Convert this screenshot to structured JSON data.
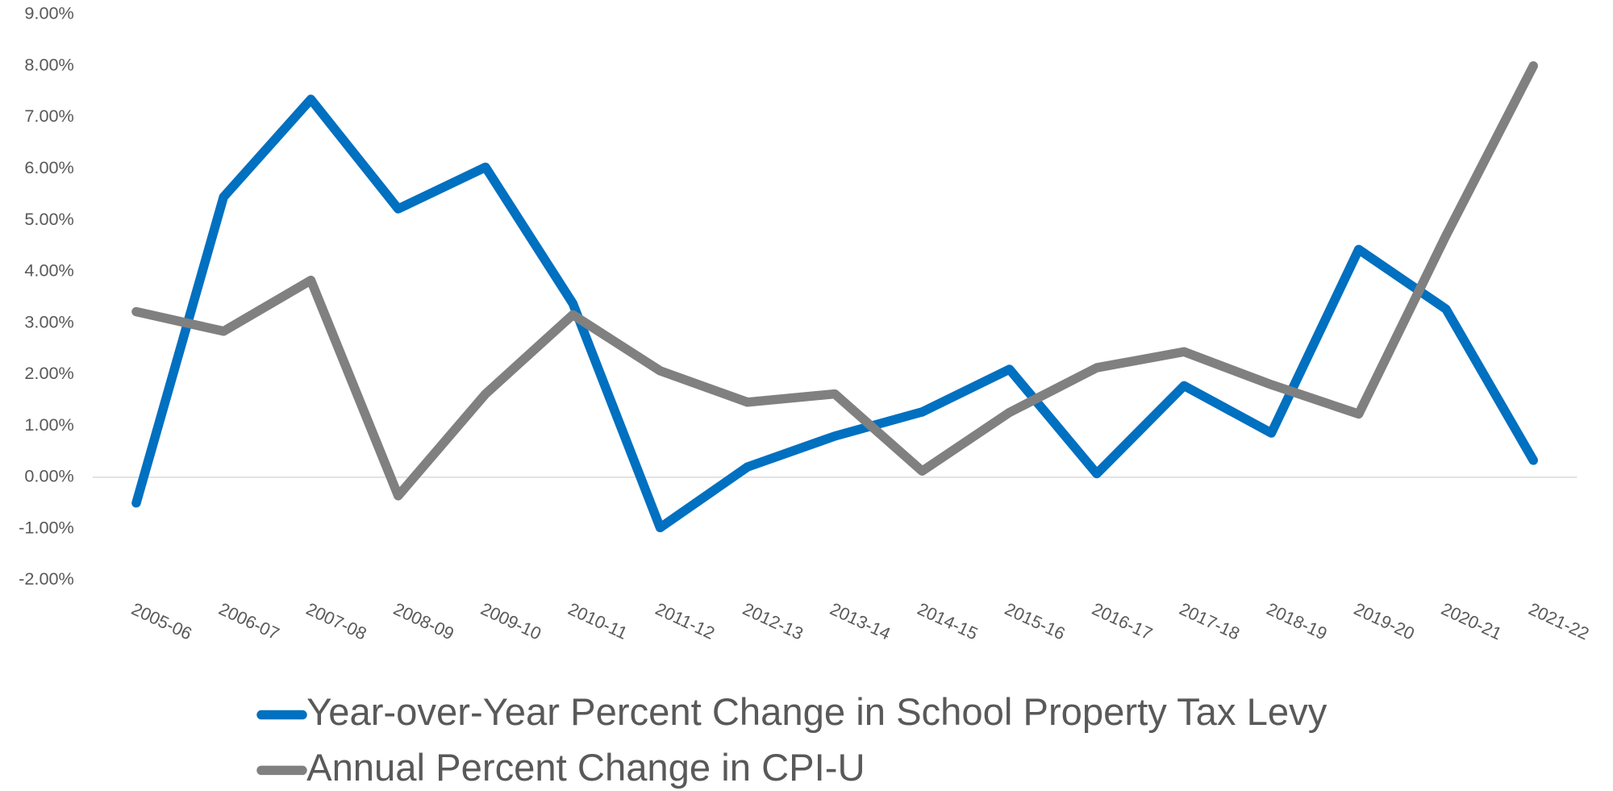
{
  "chart_data": {
    "type": "line",
    "categories": [
      "2005-06",
      "2006-07",
      "2007-08",
      "2008-09",
      "2009-10",
      "2010-11",
      "2011-12",
      "2012-13",
      "2013-14",
      "2014-15",
      "2015-16",
      "2016-17",
      "2017-18",
      "2018-19",
      "2019-20",
      "2020-21",
      "2021-22"
    ],
    "series": [
      {
        "name": "Year-over-Year Percent Change in School Property Tax Levy",
        "color": "#0070c0",
        "values": [
          -0.5,
          5.45,
          7.35,
          5.22,
          6.03,
          3.38,
          -0.98,
          0.2,
          0.8,
          1.27,
          2.1,
          0.07,
          1.78,
          0.86,
          4.43,
          3.27,
          0.33
        ]
      },
      {
        "name": "Annual Percent Change in CPI-U",
        "color": "#808080",
        "values": [
          3.22,
          2.84,
          3.83,
          -0.36,
          1.62,
          3.16,
          2.07,
          1.46,
          1.62,
          0.12,
          1.26,
          2.13,
          2.44,
          1.8,
          1.23,
          4.7,
          8.0
        ]
      }
    ],
    "ylim": [
      -2,
      9
    ],
    "yticks": [
      {
        "value": -2,
        "label": "-2.00%"
      },
      {
        "value": -1,
        "label": "-1.00%"
      },
      {
        "value": 0,
        "label": "0.00%"
      },
      {
        "value": 1,
        "label": "1.00%"
      },
      {
        "value": 2,
        "label": "2.00%"
      },
      {
        "value": 3,
        "label": "3.00%"
      },
      {
        "value": 4,
        "label": "4.00%"
      },
      {
        "value": 5,
        "label": "5.00%"
      },
      {
        "value": 6,
        "label": "6.00%"
      },
      {
        "value": 7,
        "label": "7.00%"
      },
      {
        "value": 8,
        "label": "8.00%"
      },
      {
        "value": 9,
        "label": "9.00%"
      }
    ],
    "grid": false,
    "legend": "bottom"
  }
}
